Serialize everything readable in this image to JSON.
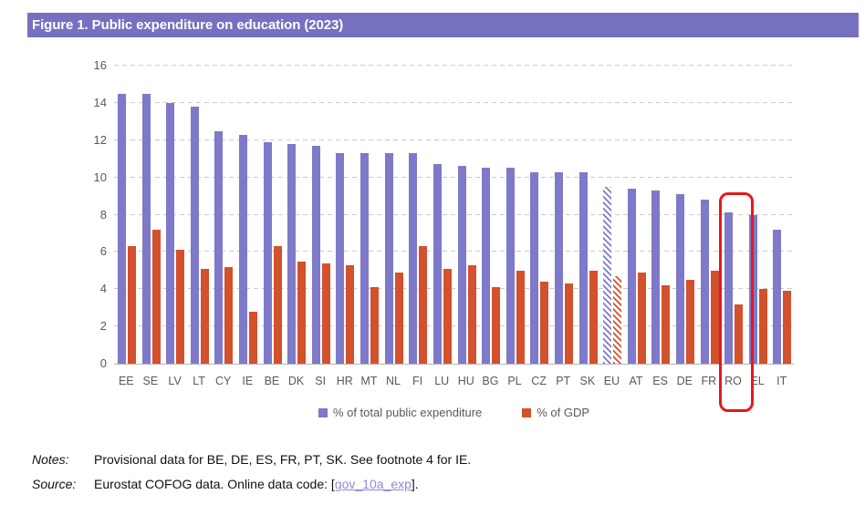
{
  "figure": {
    "title": "Figure 1. Public expenditure on education (2023)"
  },
  "chart_data": {
    "type": "bar",
    "title": "Figure 1. Public expenditure on education (2023)",
    "categories": [
      "EE",
      "SE",
      "LV",
      "LT",
      "CY",
      "IE",
      "BE",
      "DK",
      "SI",
      "HR",
      "MT",
      "NL",
      "FI",
      "LU",
      "HU",
      "BG",
      "PL",
      "CZ",
      "PT",
      "SK",
      "EU",
      "AT",
      "ES",
      "DE",
      "FR",
      "RO",
      "EL",
      "IT"
    ],
    "series": [
      {
        "name": "% of total public expenditure",
        "color": "#7e79c9",
        "values": [
          14.5,
          14.5,
          14.0,
          13.8,
          12.5,
          12.3,
          11.9,
          11.8,
          11.7,
          11.3,
          11.3,
          11.3,
          11.3,
          10.7,
          10.6,
          10.5,
          10.5,
          10.3,
          10.3,
          10.3,
          9.5,
          9.4,
          9.3,
          9.1,
          8.8,
          8.1,
          8.0,
          7.2
        ]
      },
      {
        "name": "% of GDP",
        "color": "#d3512c",
        "values": [
          6.3,
          7.2,
          6.1,
          5.1,
          5.2,
          2.8,
          6.3,
          5.5,
          5.4,
          5.3,
          4.1,
          4.9,
          6.3,
          5.1,
          5.3,
          4.1,
          5.0,
          4.4,
          4.3,
          5.0,
          4.7,
          4.9,
          4.2,
          4.5,
          5.0,
          3.2,
          4.0,
          3.9
        ]
      }
    ],
    "xlabel": "",
    "ylabel": "",
    "ylim": [
      0,
      16
    ],
    "y_ticks": [
      0,
      2,
      4,
      6,
      8,
      10,
      12,
      14,
      16
    ],
    "grid": "horizontal-dashed",
    "legend_position": "bottom",
    "hatched_category": "EU",
    "highlighted_category": "RO"
  },
  "notes": {
    "label": "Notes:",
    "text": "Provisional data for BE, DE, ES, FR, PT, SK. See footnote 4 for IE."
  },
  "source": {
    "label": "Source:",
    "text_before_link": "Eurostat COFOG data. Online data code: [",
    "link": "gov_10a_exp",
    "text_after_link": "]."
  },
  "colors": {
    "banner_background": "#7670c0",
    "banner_text": "#ffffff",
    "bar_total_expenditure": "#7e79c9",
    "bar_gdp": "#d3512c",
    "highlight_box": "#e5171e",
    "axis_text": "#595959",
    "gridline": "#cbcbcb",
    "link": "#8b8bd9"
  }
}
